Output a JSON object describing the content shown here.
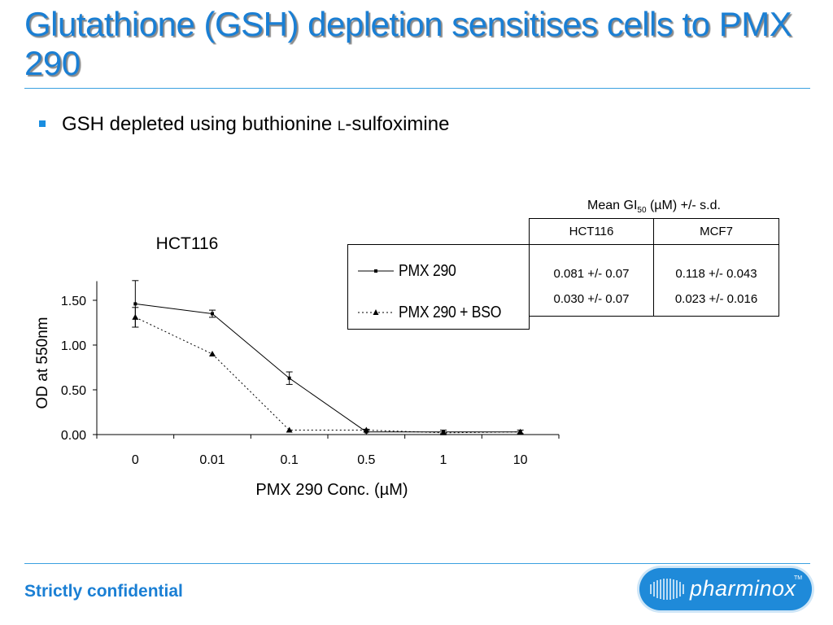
{
  "slide": {
    "title": "Glutathione (GSH) depletion sensitises cells to PMX 290",
    "bullet_main": "GSH depleted using buthionine ",
    "bullet_smallcap": "L",
    "bullet_rest": "-sulfoximine",
    "footer": "Strictly confidential",
    "logo_text": "pharminox",
    "logo_tm": "TM",
    "accent_color": "#1a7fd4"
  },
  "chart_data": {
    "type": "line",
    "title": "HCT116",
    "xlabel": "PMX 290 Conc. (µM)",
    "ylabel": "OD at 550nm",
    "categories": [
      "0",
      "0.01",
      "0.1",
      "0.5",
      "1",
      "10"
    ],
    "yticks": [
      "0.00",
      "0.50",
      "1.00",
      "1.50"
    ],
    "ylim": [
      0,
      1.75
    ],
    "grid": false,
    "legend_position": "right",
    "series": [
      {
        "name": "PMX 290",
        "marker": "square",
        "line": "solid",
        "values": [
          1.46,
          1.35,
          0.63,
          0.03,
          0.03,
          0.03
        ],
        "errors": [
          0.26,
          0.04,
          0.07,
          0.03,
          0.02,
          0.02
        ]
      },
      {
        "name": "PMX 290 + BSO",
        "marker": "triangle",
        "line": "dotted",
        "values": [
          1.31,
          0.9,
          0.05,
          0.05,
          0.02,
          0.03
        ],
        "errors": [
          0.11,
          0,
          0,
          0,
          0,
          0
        ]
      }
    ]
  },
  "gi_table": {
    "header": "Mean GI",
    "header_sub": "50",
    "header_rest": " (µM) +/- s.d.",
    "columns": [
      "HCT116",
      "MCF7"
    ],
    "rows": [
      [
        "0.081 +/- 0.07",
        "0.118 +/- 0.043"
      ],
      [
        "0.030 +/- 0.07",
        "0.023 +/- 0.016"
      ]
    ]
  }
}
